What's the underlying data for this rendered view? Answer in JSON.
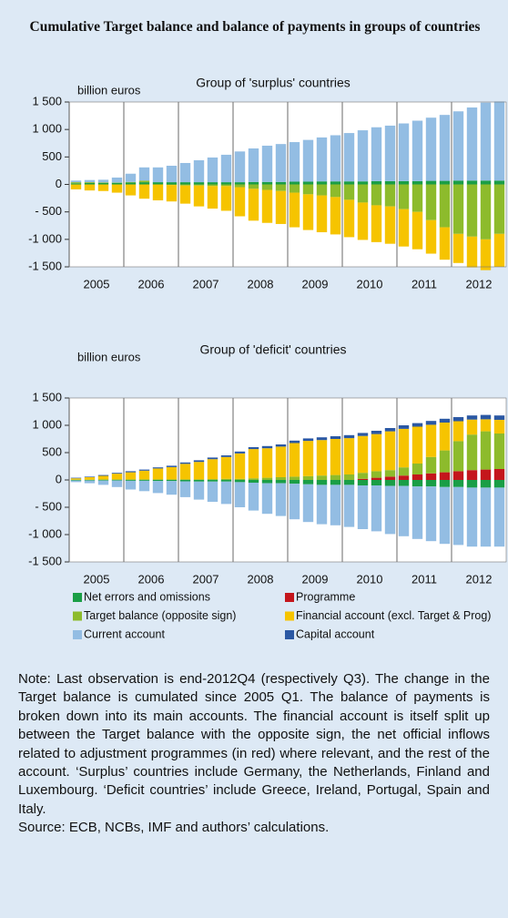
{
  "title": "Cumulative Target balance and balance of payments in groups of countries",
  "chart_data": [
    {
      "type": "bar",
      "stacked": true,
      "subtitle": "Group of 'surplus' countries",
      "y_label": "billion euros",
      "categories": [
        null,
        "2005",
        null,
        null,
        null,
        "2006",
        null,
        null,
        null,
        "2007",
        null,
        null,
        null,
        "2008",
        null,
        null,
        null,
        "2009",
        null,
        null,
        null,
        "2010",
        null,
        null,
        null,
        "2011",
        null,
        null,
        null,
        "2012",
        null,
        null
      ],
      "ylim": [
        -1500,
        1500
      ],
      "yticks": [
        {
          "value": -1500,
          "label": "-1 500"
        },
        {
          "value": -1000,
          "label": "-1 000"
        },
        {
          "value": -500,
          "label": "- 500"
        },
        0,
        500,
        {
          "value": 1000,
          "label": "1 000"
        },
        {
          "value": 1500,
          "label": "1 500"
        }
      ],
      "series": [
        {
          "color": "#1a9e46",
          "values": [
            20,
            25,
            25,
            30,
            35,
            40,
            40,
            40,
            40,
            40,
            40,
            40,
            40,
            45,
            45,
            45,
            50,
            50,
            55,
            55,
            55,
            55,
            60,
            60,
            60,
            60,
            65,
            65,
            70,
            70,
            70,
            70
          ]
        },
        {
          "color": "#8dbb2c",
          "values": [
            20,
            15,
            10,
            5,
            10,
            30,
            0,
            -10,
            -20,
            -20,
            -30,
            -30,
            -50,
            -80,
            -100,
            -120,
            -150,
            -180,
            -200,
            -230,
            -280,
            -330,
            -380,
            -400,
            -450,
            -500,
            -650,
            -780,
            -900,
            -950,
            -1000,
            -900
          ]
        },
        {
          "color": "#f6c400",
          "values": [
            -90,
            -110,
            -120,
            -150,
            -200,
            -260,
            -290,
            -300,
            -330,
            -380,
            -410,
            -450,
            -530,
            -580,
            -600,
            -600,
            -630,
            -650,
            -670,
            -680,
            -680,
            -680,
            -670,
            -680,
            -680,
            -680,
            -610,
            -590,
            -530,
            -560,
            -560,
            -600
          ]
        },
        {
          "color": "#93bde3",
          "values": [
            30,
            40,
            50,
            90,
            150,
            240,
            270,
            300,
            350,
            400,
            450,
            500,
            560,
            610,
            660,
            690,
            720,
            760,
            800,
            840,
            880,
            930,
            980,
            1010,
            1050,
            1100,
            1150,
            1200,
            1260,
            1330,
            1420,
            1440
          ]
        }
      ]
    },
    {
      "type": "bar",
      "stacked": true,
      "subtitle": "Group of 'deficit' countries",
      "y_label": "billion euros",
      "categories": [
        null,
        "2005",
        null,
        null,
        null,
        "2006",
        null,
        null,
        null,
        "2007",
        null,
        null,
        null,
        "2008",
        null,
        null,
        null,
        "2009",
        null,
        null,
        null,
        "2010",
        null,
        null,
        null,
        "2011",
        null,
        null,
        null,
        "2012",
        null,
        null
      ],
      "ylim": [
        -1500,
        1500
      ],
      "yticks": [
        {
          "value": -1500,
          "label": "-1 500"
        },
        {
          "value": -1000,
          "label": "-1 000"
        },
        {
          "value": -500,
          "label": "- 500"
        },
        0,
        500,
        {
          "value": 1000,
          "label": "1 000"
        },
        {
          "value": 1500,
          "label": "1 500"
        }
      ],
      "series": [
        {
          "name": "Net errors and omissions",
          "color": "#1a9e46",
          "values": [
            -10,
            -10,
            -10,
            -10,
            -15,
            -15,
            -20,
            -20,
            -25,
            -30,
            -30,
            -30,
            -40,
            -50,
            -60,
            -60,
            -70,
            -80,
            -90,
            -90,
            -90,
            -100,
            -100,
            -110,
            -110,
            -120,
            -120,
            -130,
            -130,
            -140,
            -140,
            -140
          ]
        },
        {
          "name": "Programme",
          "color": "#c4161c",
          "values": [
            0,
            0,
            0,
            0,
            0,
            0,
            0,
            0,
            0,
            0,
            0,
            0,
            0,
            0,
            0,
            0,
            0,
            0,
            0,
            0,
            0,
            20,
            40,
            60,
            80,
            100,
            120,
            140,
            160,
            180,
            190,
            200
          ]
        },
        {
          "name": "Target balance (opposite sign)",
          "color": "#8dbb2c",
          "values": [
            5,
            5,
            10,
            10,
            10,
            10,
            10,
            10,
            10,
            10,
            15,
            20,
            20,
            30,
            40,
            50,
            60,
            70,
            80,
            90,
            100,
            110,
            120,
            120,
            150,
            200,
            300,
            400,
            550,
            650,
            700,
            650
          ]
        },
        {
          "name": "Financial account (excl. Target & Prog)",
          "color": "#f6c400",
          "values": [
            25,
            45,
            65,
            105,
            130,
            160,
            200,
            225,
            285,
            320,
            365,
            400,
            465,
            535,
            540,
            560,
            615,
            645,
            650,
            660,
            665,
            675,
            680,
            710,
            705,
            675,
            590,
            510,
            365,
            275,
            220,
            250
          ]
        },
        {
          "name": "Current account",
          "color": "#93bde3",
          "values": [
            -30,
            -50,
            -80,
            -120,
            -160,
            -190,
            -220,
            -250,
            -290,
            -330,
            -370,
            -410,
            -460,
            -510,
            -560,
            -600,
            -650,
            -690,
            -720,
            -740,
            -770,
            -800,
            -840,
            -880,
            -920,
            -960,
            -1000,
            -1040,
            -1060,
            -1080,
            -1080,
            -1080
          ]
        },
        {
          "name": "Capital account",
          "color": "#2b58a3",
          "values": [
            10,
            10,
            15,
            15,
            20,
            20,
            20,
            25,
            25,
            30,
            30,
            30,
            35,
            35,
            40,
            40,
            45,
            45,
            50,
            50,
            55,
            55,
            60,
            60,
            65,
            65,
            70,
            70,
            75,
            75,
            80,
            80
          ]
        }
      ]
    }
  ],
  "note": "Note: Last observation is end-2012Q4 (respectively Q3). The change in the Target balance is cumulated since 2005 Q1. The balance of payments is broken down into its main accounts. The financial account is itself split up between the Target balance with the opposite sign, the net official inflows related to adjustment programmes (in red) where relevant, and the rest of the account. ‘Surplus’ countries include Germany, the Netherlands, Finland and Luxembourg. ‘Deficit countries’ include Greece, Ireland, Portugal, Spain and Italy.",
  "source": "Source: ECB, NCBs, IMF and authors’ calculations."
}
